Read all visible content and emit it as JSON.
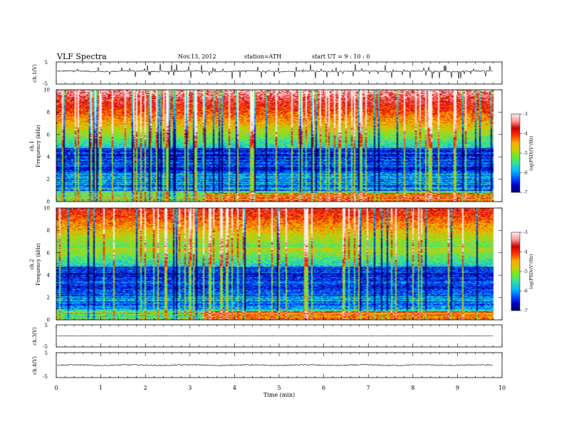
{
  "header": {
    "title": "VLF Spectra",
    "date": "Nov.13, 2012",
    "station": "station=ATH",
    "start_label": "start  UT  =   9  : 10 : 0"
  },
  "chart_data": [
    {
      "type": "line",
      "panel": "ch1-waveform",
      "ylabel": "ch.1(V)",
      "ylim": [
        -5,
        5
      ],
      "yticks": [
        "5",
        "-5"
      ],
      "xlim": [
        0,
        10
      ],
      "baseline": 0.8,
      "noise_amplitude": 0.5,
      "spike_amplitude": 3.5,
      "data_end_min": 9.8
    },
    {
      "type": "heatmap",
      "panel": "ch1-spectrogram",
      "ylabel_top": "ch.1",
      "ylabel": "Frequency  (kHz)",
      "ylim": [
        0,
        10
      ],
      "yticks": [
        "0",
        "2",
        "4",
        "6",
        "8",
        "10"
      ],
      "xlim": [
        0,
        10
      ],
      "data_end_min": 9.8,
      "scale_change_min": 3.25,
      "colorbar": {
        "label": "log(PSD)(V²/Hz)",
        "range": [
          -7,
          -3
        ],
        "ticks": [
          "-3",
          "-4",
          "-5",
          "-6",
          "-7"
        ]
      }
    },
    {
      "type": "heatmap",
      "panel": "ch2-spectrogram",
      "ylabel_top": "ch.2",
      "ylabel": "Frequency  (kHz)",
      "ylim": [
        0,
        10
      ],
      "yticks": [
        "0",
        "2",
        "4",
        "6",
        "8",
        "10"
      ],
      "xlim": [
        0,
        10
      ],
      "data_end_min": 9.8,
      "scale_change_min": 3.25,
      "colorbar": {
        "label": "log(PSD)(V²/Hz)",
        "range": [
          -7,
          -3
        ],
        "ticks": [
          "-3",
          "-4",
          "-5",
          "-6",
          "-7"
        ]
      }
    },
    {
      "type": "line",
      "panel": "ch3-waveform",
      "ylabel": "ch.3(V)",
      "ylim": [
        -5,
        5
      ],
      "yticks": [
        "5",
        "-5"
      ],
      "xlim": [
        0,
        10
      ],
      "baseline": 0,
      "noise_amplitude": 0.05,
      "data_end_min": 9.8
    },
    {
      "type": "line",
      "panel": "ch4-waveform",
      "ylabel": "ch.4(V)",
      "ylim": [
        -5,
        5
      ],
      "yticks": [
        "5",
        "-5"
      ],
      "xlim": [
        0,
        10
      ],
      "xticks": [
        "0",
        "1",
        "2",
        "3",
        "4",
        "5",
        "6",
        "7",
        "8",
        "9",
        "10"
      ],
      "xlabel": "Time  (min)",
      "baseline": 0,
      "noise_amplitude": 0.4,
      "data_end_min": 9.8
    }
  ],
  "colors": {
    "axis": "#000000",
    "colormap": [
      "#000066",
      "#0000cc",
      "#0055ff",
      "#00bbff",
      "#33ddaa",
      "#66ee33",
      "#cccc00",
      "#ffaa00",
      "#ff3300",
      "#cc0000",
      "#ff9999",
      "#ffeeee"
    ]
  }
}
